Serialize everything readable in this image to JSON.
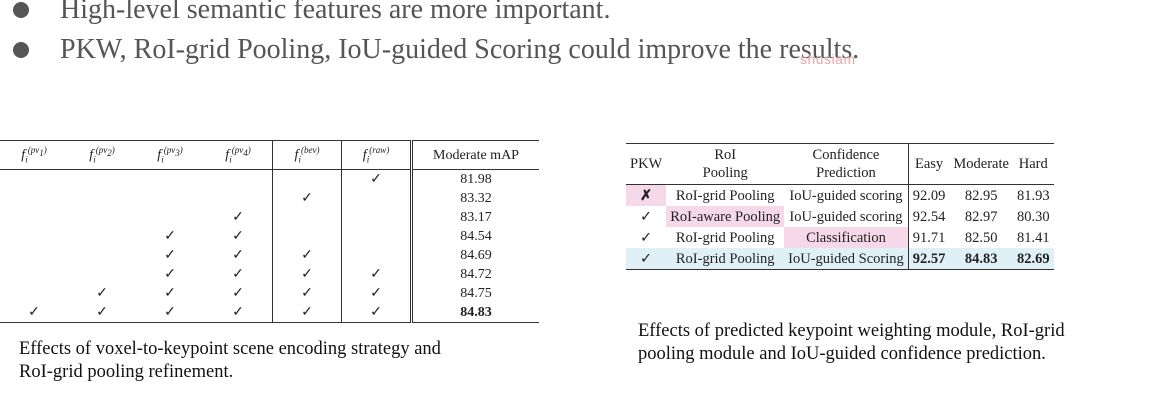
{
  "bullets": [
    "High-level semantic features are more important.",
    "PKW, RoI-grid Pooling, IoU-guided Scoring could improve the results."
  ],
  "watermark": "shusiam",
  "table1": {
    "columns": [
      "f(pv1)",
      "f(pv2)",
      "f(pv3)",
      "f(pv4)",
      "f(bev)",
      "f(raw)"
    ],
    "metric_header": "Moderate mAP",
    "check": "✓",
    "rows": [
      {
        "checks": [
          false,
          false,
          false,
          false,
          false,
          true
        ],
        "value": "81.98"
      },
      {
        "checks": [
          false,
          false,
          false,
          false,
          true,
          false
        ],
        "value": "83.32"
      },
      {
        "checks": [
          false,
          false,
          false,
          true,
          false,
          false
        ],
        "value": "83.17"
      },
      {
        "checks": [
          false,
          false,
          true,
          true,
          false,
          false
        ],
        "value": "84.54"
      },
      {
        "checks": [
          false,
          false,
          true,
          true,
          true,
          false
        ],
        "value": "84.69"
      },
      {
        "checks": [
          false,
          false,
          true,
          true,
          true,
          true
        ],
        "value": "84.72"
      },
      {
        "checks": [
          false,
          true,
          true,
          true,
          true,
          true
        ],
        "value": "84.75"
      },
      {
        "checks": [
          true,
          true,
          true,
          true,
          true,
          true
        ],
        "value": "84.83"
      }
    ],
    "caption_lines": [
      "Effects of voxel-to-keypoint scene encoding strategy and",
      "RoI-grid pooling refinement."
    ]
  },
  "table2": {
    "headers": {
      "pkw": "PKW",
      "roi_1": "RoI",
      "roi_2": "Pooling",
      "conf_1": "Confidence",
      "conf_2": "Prediction",
      "easy": "Easy",
      "moderate": "Moderate",
      "hard": "Hard"
    },
    "rows": [
      {
        "pkw": "✗",
        "pooling": "RoI-grid Pooling",
        "conf": "IoU-guided scoring",
        "easy": "92.09",
        "moderate": "82.95",
        "hard": "81.93"
      },
      {
        "pkw": "✓",
        "pooling": "RoI-aware Pooling",
        "conf": "IoU-guided scoring",
        "easy": "92.54",
        "moderate": "82.97",
        "hard": "80.30"
      },
      {
        "pkw": "✓",
        "pooling": "RoI-grid Pooling",
        "conf": "Classification",
        "easy": "91.71",
        "moderate": "82.50",
        "hard": "81.41"
      },
      {
        "pkw": "✓",
        "pooling": "RoI-grid Pooling",
        "conf": "IoU-guided Scoring",
        "easy": "92.57",
        "moderate": "84.83",
        "hard": "82.69"
      }
    ],
    "caption_lines": [
      "Effects of predicted keypoint weighting module, RoI-grid",
      "pooling module and IoU-guided confidence prediction."
    ]
  }
}
